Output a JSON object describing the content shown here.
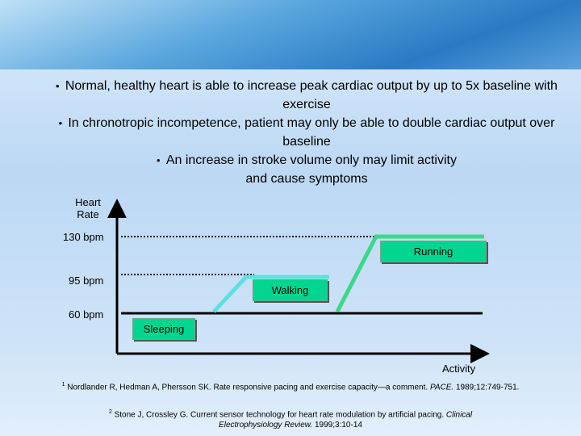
{
  "bullets": [
    "Normal, healthy heart is able to increase peak cardiac output by up to 5x baseline with exercise",
    "In chronotropic incompetence, patient may only be able to double cardiac output over baseline",
    "An increase in stroke volume only may limit activity and cause symptoms"
  ],
  "diagram": {
    "y_axis_title": "Heart Rate",
    "x_axis_title": "Activity",
    "levels": [
      "130 bpm",
      "95 bpm",
      "60 bpm"
    ],
    "activities": [
      "Sleeping",
      "Walking",
      "Running"
    ]
  },
  "references": [
    {
      "marker": "1",
      "text": "Nordlander R, Hedman A, Phersson SK. Rate responsive pacing and exercise capacity—a comment.",
      "journal": "PACE.",
      "citation": "1989;12:749-751."
    },
    {
      "marker": "2",
      "text": "Stone J, Crossley G. Current sensor technology for heart rate modulation by artificial pacing.",
      "journal": "Clinical Electrophysiology Review.",
      "citation": "1999;3:10-14"
    }
  ]
}
